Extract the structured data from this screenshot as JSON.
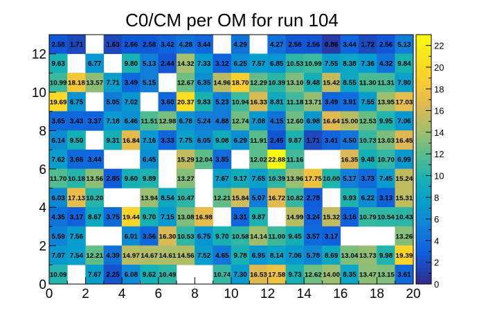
{
  "chart_data": {
    "type": "heatmap",
    "title": "C0/CM per OM for run 104",
    "xlabel": "",
    "ylabel": "",
    "xlim": [
      0,
      20
    ],
    "ylim": [
      0,
      13
    ],
    "x_ticks": [
      0,
      2,
      4,
      6,
      8,
      10,
      12,
      14,
      16,
      18,
      20
    ],
    "y_ticks": [
      0,
      2,
      4,
      6,
      8,
      10,
      12
    ],
    "z_range": [
      0,
      23
    ],
    "palette_ticks": [
      0,
      2,
      4,
      6,
      8,
      10,
      12,
      14,
      16,
      18,
      20,
      22
    ],
    "grid": false,
    "colorbar_position": "right",
    "row_labels_top_to_bottom": [
      "2.58 1.71 _ 1.63 2.66 2.58 3.42 4.28 3.44 _ 4.29 _ 4.27 2.56 2.56 0.86 3.44 1.72 2.56 5.13",
      "9.63 _ 6.77 _ 9.80 5.13 2.44 14.32 7.33 3.12 6.25 7.57 6.85 10.53 10.99 7.55 8.38 7.36 4.32 9.84",
      "10.99 18.18 13.57 7.71 3.49 5.15 _ 12.67 6.35 14.96 18.70 12.29 10.39 13.10 9.48 15.42 8.55 11.30 11.31 7.80",
      "19.69 6.75 _ 5.05 7.02 _ 3.60 20.37 9.83 5.23 10.94 16.33 8.81 11.18 13.71 3.49 3.91 7.55 13.95 17.03",
      "3.65 3.43 3.37 7.18 6.46 11.51 12.98 6.78 5.24 4.88 12.74 7.08 4.15 12.60 6.98 16.64 15.00 12.53 9.95 7.06",
      "6.14 9.50 _ 9.31 16.84 7.16 3.33 7.75 6.05 9.08 6.29 11.91 2.45 9.87 1.71 3.41 4.50 10.73 13.03 16.45",
      "7.62 3.66 3.44 _ _ 6.45 _ 15.29 12.04 3.85 _ 12.02 22.88 11.16 _ _ 16.35 9.48 10.70 6.99",
      "11.70 10.18 13.56 2.85 9.60 9.89 _ 13.27 _ 7.67 9.17 7.65 10.39 13.96 17.75 10.00 5.17 3.73 7.45 15.24",
      "6.03 17.13 10.20 _ _ 13.94 8.54 10.47 _ 12.21 15.84 5.07 16.72 10.82 2.78 _ 9.93 6.22 3.13 15.31",
      "4.35 3.17 8.67 3.75 19.44 9.70 7.15 13.08 16.98 _ 3.31 9.87 _ 14.99 3.24 15.32 3.16 10.79 10.54 10.43",
      "5.59 7.56 _ _ 6.01 3.56 16.30 10.53 6.75 9.70 10.58 14.14 11.00 9.45 3.57 3.17 _ _ _ 13.26",
      "7.07 7.54 12.21 4.39 14.97 14.67 14.61 14.56 7.52 4.65 9.78 6.95 8.14 7.06 5.78 8.69 13.04 13.73 9.98 19.39",
      "10.09 _ 7.67 2.25 6.08 9.62 10.49 _ _ 10.74 7.30 16.53 17.58 9.73 12.62 14.00 8.35 13.47 13.15 3.61"
    ]
  }
}
